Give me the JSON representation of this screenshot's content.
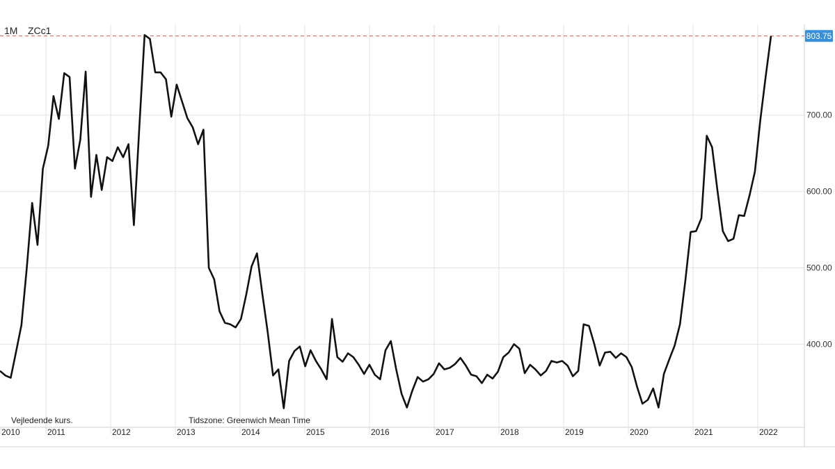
{
  "header": {
    "period": "1M",
    "symbol": "ZCc1"
  },
  "footer": {
    "note": "Vejledende kurs.",
    "timezone": "Tidszone: Greenwich Mean Time"
  },
  "last_price_label": "803.75",
  "colors": {
    "line": "#111111",
    "grid": "#e3e3e3",
    "last_line": "#d9534f",
    "last_bg": "#3a8fd9",
    "axis": "#cfcfcf"
  },
  "chart_data": {
    "type": "line",
    "title": "",
    "xlabel": "",
    "ylabel": "",
    "x_ticks": [
      "2010",
      "2011",
      "2012",
      "2013",
      "2014",
      "2015",
      "2016",
      "2017",
      "2018",
      "2019",
      "2020",
      "2021",
      "2022"
    ],
    "y_ticks": [
      {
        "value": 400,
        "label": "400.00"
      },
      {
        "value": 500,
        "label": "500.00"
      },
      {
        "value": 600,
        "label": "600.00"
      },
      {
        "value": 700,
        "label": "700.00"
      }
    ],
    "ylim": [
      302,
      809
    ],
    "grid": true,
    "last_value": 803.75,
    "series": [
      {
        "values": [
          365,
          359,
          356,
          390,
          425,
          500,
          585,
          530,
          630,
          660,
          725,
          695,
          755,
          750,
          630,
          668,
          757,
          593,
          648,
          602,
          645,
          640,
          658,
          645,
          662,
          556,
          682,
          805,
          800,
          756,
          756,
          747,
          698,
          740,
          718,
          696,
          684,
          662,
          681,
          500,
          485,
          443,
          428,
          426,
          422,
          433,
          465,
          502,
          519,
          466,
          416,
          359,
          367,
          316,
          378,
          391,
          397,
          371,
          392,
          378,
          367,
          354,
          433,
          383,
          377,
          388,
          383,
          373,
          361,
          373,
          360,
          354,
          392,
          404,
          367,
          335,
          317,
          339,
          357,
          351,
          354,
          361,
          375,
          367,
          369,
          374,
          382,
          372,
          360,
          358,
          349,
          360,
          355,
          364,
          383,
          389,
          400,
          394,
          362,
          373,
          367,
          359,
          365,
          378,
          376,
          378,
          372,
          358,
          365,
          426,
          424,
          400,
          372,
          389,
          390,
          382,
          388,
          383,
          370,
          344,
          322,
          327,
          342,
          317,
          361,
          380,
          398,
          426,
          483,
          547,
          548,
          565,
          673,
          658,
          601,
          548,
          535,
          538,
          569,
          568,
          595,
          626,
          693,
          750,
          803.75
        ]
      }
    ]
  }
}
